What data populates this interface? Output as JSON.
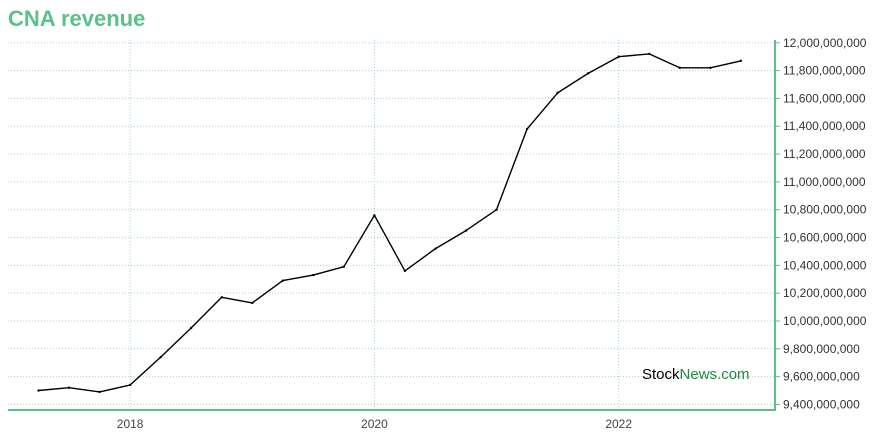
{
  "chart_data": {
    "type": "line",
    "title": "CNA revenue",
    "x": [
      2017.25,
      2017.5,
      2017.75,
      2018.0,
      2018.25,
      2018.5,
      2018.75,
      2019.0,
      2019.25,
      2019.5,
      2019.75,
      2020.0,
      2020.25,
      2020.5,
      2020.75,
      2021.0,
      2021.25,
      2021.5,
      2021.75,
      2022.0,
      2022.25,
      2022.5,
      2022.75,
      2023.0
    ],
    "series": [
      {
        "values": [
          9500000000,
          9520000000,
          9490000000,
          9540000000,
          9740000000,
          9950000000,
          10170000000,
          10130000000,
          10290000000,
          10330000000,
          10390000000,
          10760000000,
          10360000000,
          10520000000,
          10650000000,
          10800000000,
          11380000000,
          11640000000,
          11780000000,
          11900000000,
          11920000000,
          11820000000,
          11820000000,
          11870000000
        ],
        "color": "#000000"
      }
    ],
    "x_ticks": [
      {
        "value": 2018,
        "label": "2018"
      },
      {
        "value": 2020,
        "label": "2020"
      },
      {
        "value": 2022,
        "label": "2022"
      }
    ],
    "y_ticks": [
      {
        "value": 9400000000,
        "label": "9,400,000,000"
      },
      {
        "value": 9600000000,
        "label": "9,600,000,000"
      },
      {
        "value": 9800000000,
        "label": "9,800,000,000"
      },
      {
        "value": 10000000000,
        "label": "10,000,000,000"
      },
      {
        "value": 10200000000,
        "label": "10,200,000,000"
      },
      {
        "value": 10400000000,
        "label": "10,400,000,000"
      },
      {
        "value": 10600000000,
        "label": "10,600,000,000"
      },
      {
        "value": 10800000000,
        "label": "10,800,000,000"
      },
      {
        "value": 11000000000,
        "label": "11,000,000,000"
      },
      {
        "value": 11200000000,
        "label": "11,200,000,000"
      },
      {
        "value": 11400000000,
        "label": "11,400,000,000"
      },
      {
        "value": 11600000000,
        "label": "11,600,000,000"
      },
      {
        "value": 11800000000,
        "label": "11,800,000,000"
      },
      {
        "value": 12000000000,
        "label": "12,000,000,000"
      }
    ],
    "xlim": [
      2017.0,
      2023.28
    ],
    "ylim": [
      9360000000,
      12020000000
    ],
    "grid": true,
    "y_axis_side": "right",
    "axis_color": "#5cc08a",
    "grid_color": "#9fd9bb"
  },
  "watermark": {
    "part1": "Stock",
    "part2": "News",
    "part3": ".com",
    "color_dark": "#000000",
    "color_green": "#1e8c3a"
  }
}
